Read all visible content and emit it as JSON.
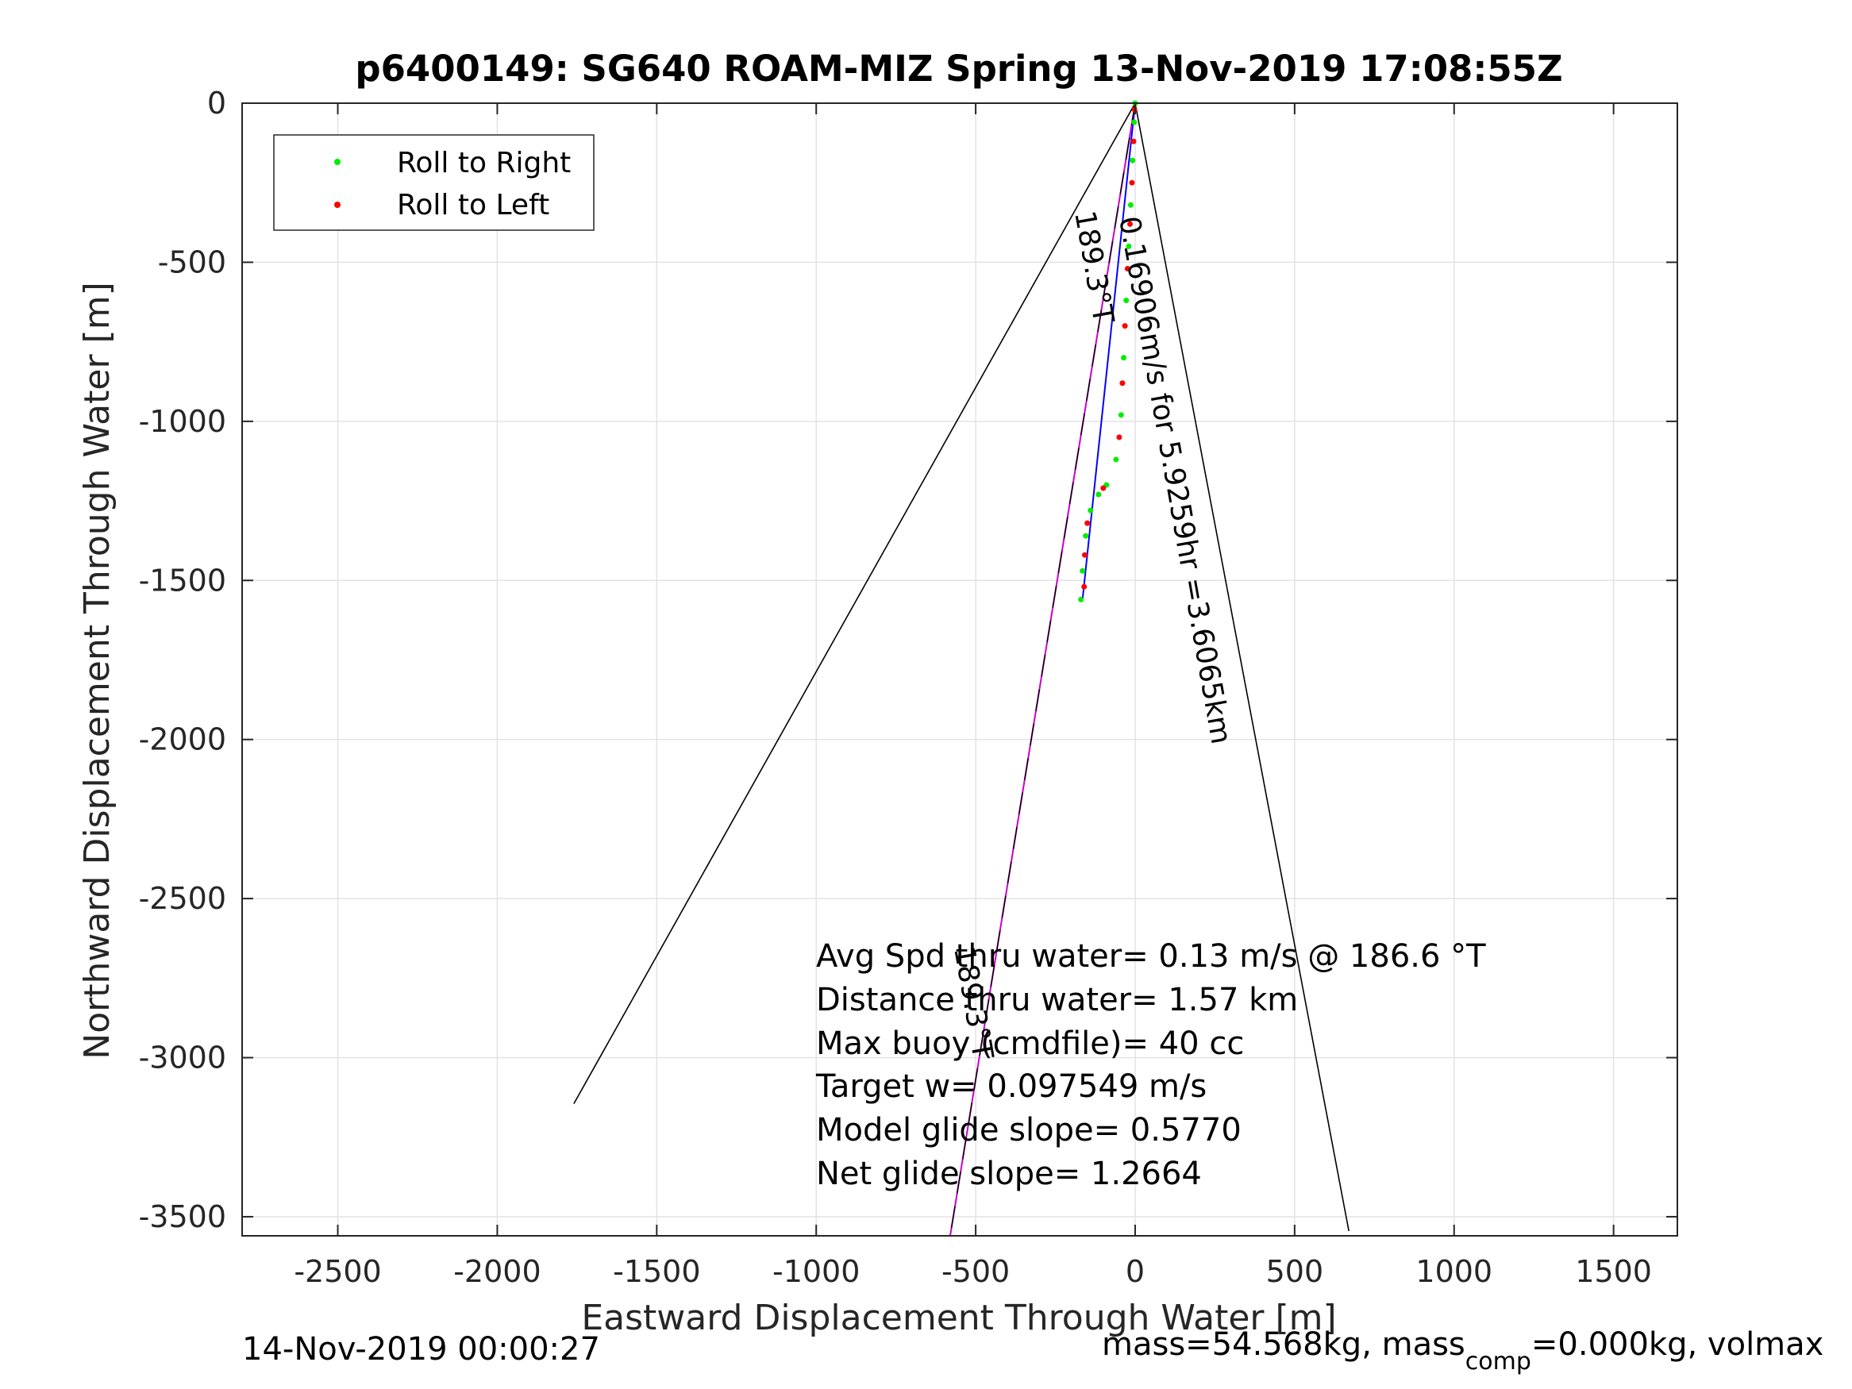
{
  "chart_data": {
    "type": "scatter",
    "title": "p6400149: SG640 ROAM-MIZ Spring 13-Nov-2019 17:08:55Z",
    "xlabel": "Eastward Displacement Through Water [m]",
    "ylabel": "Northward Displacement Through Water [m]",
    "xlim": [
      -2800,
      1700
    ],
    "ylim": [
      -3560,
      0
    ],
    "x_ticks": [
      -2500,
      -2000,
      -1500,
      -1000,
      -500,
      0,
      500,
      1000,
      1500
    ],
    "y_ticks": [
      0,
      -500,
      -1000,
      -1500,
      -2000,
      -2500,
      -3000,
      -3500
    ],
    "grid": true,
    "legend": {
      "placement": "top-left",
      "entries": [
        {
          "label": "Roll to Right",
          "color": "#00ee00"
        },
        {
          "label": "Roll to Left",
          "color": "#ff0000"
        }
      ]
    },
    "series": [
      {
        "name": "Roll to Right",
        "color": "#00ee00",
        "marker": "dot",
        "points": [
          [
            0,
            0
          ],
          [
            -3,
            -60
          ],
          [
            -8,
            -180
          ],
          [
            -14,
            -320
          ],
          [
            -20,
            -450
          ],
          [
            -28,
            -620
          ],
          [
            -36,
            -800
          ],
          [
            -44,
            -980
          ],
          [
            -60,
            -1120
          ],
          [
            -90,
            -1200
          ],
          [
            -115,
            -1230
          ],
          [
            -140,
            -1280
          ],
          [
            -155,
            -1360
          ],
          [
            -165,
            -1470
          ],
          [
            -170,
            -1560
          ]
        ]
      },
      {
        "name": "Roll to Left",
        "color": "#ff0000",
        "marker": "dot",
        "points": [
          [
            -2,
            -20
          ],
          [
            -5,
            -120
          ],
          [
            -10,
            -250
          ],
          [
            -16,
            -380
          ],
          [
            -24,
            -520
          ],
          [
            -32,
            -700
          ],
          [
            -40,
            -880
          ],
          [
            -50,
            -1050
          ],
          [
            -100,
            -1210
          ],
          [
            -150,
            -1320
          ],
          [
            -158,
            -1420
          ],
          [
            -160,
            -1520
          ]
        ]
      }
    ],
    "lines": [
      {
        "color": "#0000ff",
        "from": [
          0,
          0
        ],
        "to": [
          -165,
          -1560
        ]
      },
      {
        "color": "#cc00cc",
        "from": [
          0,
          0
        ],
        "to": [
          -580,
          -3560
        ]
      },
      {
        "color": "#000000",
        "from": [
          0,
          0
        ],
        "to": [
          -1760,
          -3145
        ]
      },
      {
        "color": "#000000",
        "from": [
          0,
          0
        ],
        "to": [
          670,
          -3545
        ]
      },
      {
        "color": "#000000",
        "from": [
          0,
          0
        ],
        "to": [
          -580,
          -3560
        ],
        "style": "dashed"
      }
    ],
    "annotations": [
      "0.16906m/s for 5.9259hr =3.6065km",
      "189.3°T",
      "189.3°T"
    ],
    "stats": [
      "Avg Spd thru water=  0.13 m/s @ 186.6 °T",
      "Distance thru water=  1.57 km",
      "Max buoy (cmdfile)= 40 cc",
      "Target w= 0.097549 m/s",
      "Model glide slope= 0.5770",
      "Net glide slope= 1.2664"
    ],
    "footer_left": "14-Nov-2019 00:00:27",
    "footer_right": {
      "part1": "mass=54.568kg, mass",
      "subscript": "comp",
      "part2": "=0.000kg, volmax"
    }
  }
}
